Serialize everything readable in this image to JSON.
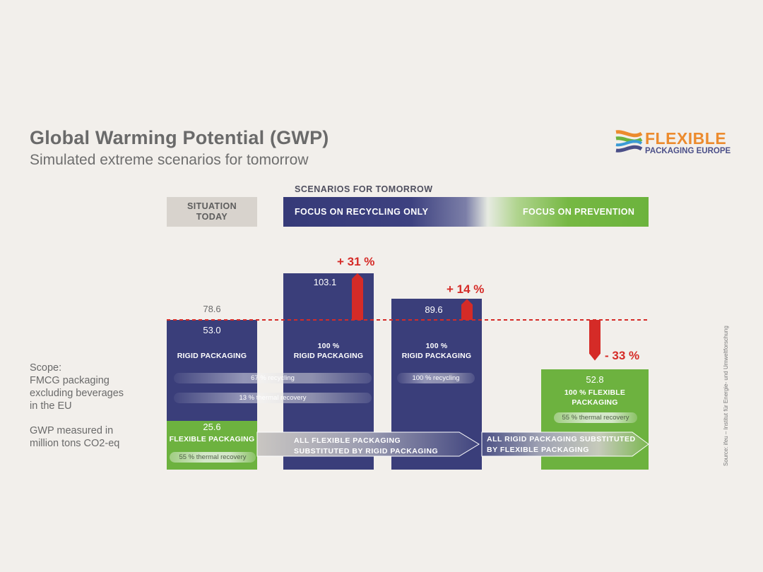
{
  "header": {
    "title": "Global Warming Potential (GWP)",
    "subtitle": "Simulated extreme scenarios for tomorrow"
  },
  "logo": {
    "line1": "FLEXIBLE",
    "line2": "PACKAGING EUROPE",
    "colors": [
      "#ec8b2e",
      "#4b4f88",
      "#6cb33d",
      "#3a9bd5"
    ]
  },
  "column_headers": {
    "scenarios_title": "SCENARIOS FOR TOMORROW",
    "today": "SITUATION\nTODAY",
    "recycling": "FOCUS ON RECYCLING ONLY",
    "prevention": "FOCUS ON PREVENTION"
  },
  "scope": {
    "text": "Scope:\nFMCG packaging\nexcluding beverages\nin the EU",
    "unit_note": "GWP measured in\nmillion tons CO2-eq"
  },
  "source": "Source: ifeu – Institut für Energie- und Umweltforschung",
  "colors": {
    "rigid": "#3a3e7a",
    "flexible": "#6db23f",
    "change": "#d52b27",
    "baseline": "#d52b27"
  },
  "chart_data": {
    "type": "bar",
    "stacked": true,
    "baseline": 78.6,
    "categories": [
      "Situation today",
      "Focus on recycling only (100% recycling)",
      "Focus on recycling only (100% rigid)",
      "Focus on prevention"
    ],
    "totals": [
      78.6,
      103.1,
      89.6,
      52.8
    ],
    "totals_labels": [
      "78.6",
      "103.1",
      "89.6",
      "52.8"
    ],
    "series": [
      {
        "name": "RIGID PACKAGING",
        "values": [
          53.0,
          103.1,
          89.6,
          0
        ]
      },
      {
        "name": "FLEXIBLE PACKAGING",
        "values": [
          25.6,
          0,
          0,
          52.8
        ]
      }
    ],
    "segment_labels": {
      "today_rigid_value": "53.0",
      "today_rigid": "RIGID PACKAGING",
      "today_flex_value": "25.6",
      "today_flex": "FLEXIBLE PACKAGING",
      "rec1_rigid": "100 %\nRIGID PACKAGING",
      "rec2_rigid": "100 %\nRIGID PACKAGING",
      "prev_flex": "100 % FLEXIBLE\nPACKAGING"
    },
    "treatment_labels": {
      "recycling_67": "67 % recycling",
      "thermal_13": "13 % thermal recovery",
      "recycling_100": "100 % recycling",
      "thermal_55_today": "55 % thermal recovery",
      "thermal_55_prev": "55 % thermal recovery"
    },
    "changes": [
      {
        "label": "+ 31 %",
        "value": 31
      },
      {
        "label": "+ 14 %",
        "value": 14
      },
      {
        "label": "- 33 %",
        "value": -33
      }
    ],
    "arrows": {
      "to_rigid": "ALL FLEXIBLE PACKAGING\nSUBSTITUTED BY RIGID PACKAGING",
      "to_flexible": "ALL RIGID PACKAGING SUBSTITUTED\nBY FLEXIBLE PACKAGING"
    },
    "ylim": [
      0,
      110
    ]
  }
}
